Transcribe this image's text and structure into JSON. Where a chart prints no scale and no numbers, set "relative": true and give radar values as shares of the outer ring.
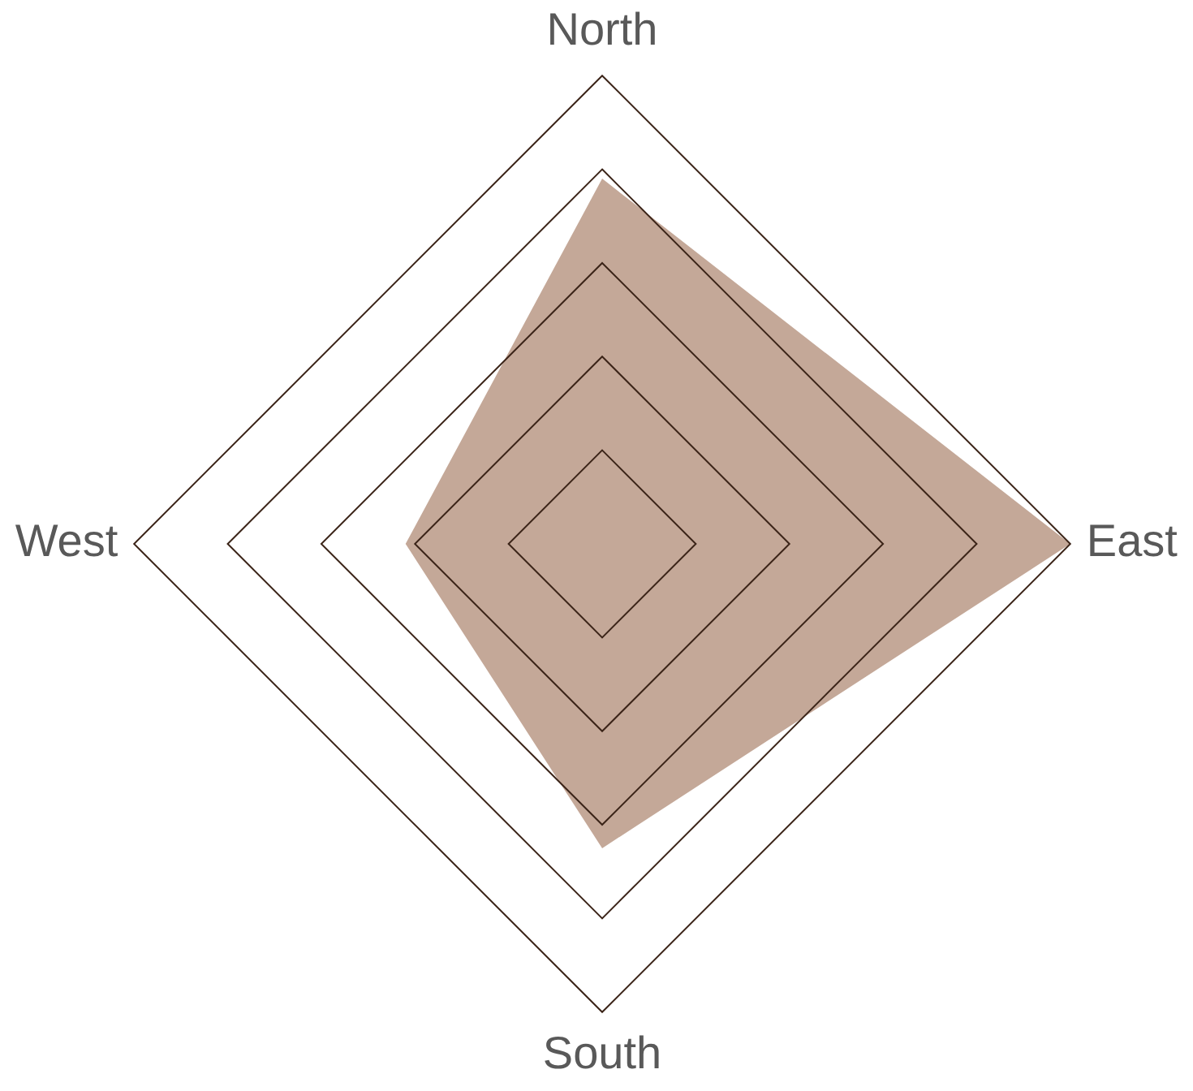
{
  "chart_data": {
    "type": "radar",
    "categories": [
      "North",
      "East",
      "South",
      "West"
    ],
    "relative": true,
    "grid": true,
    "series": [
      {
        "color": "#c4a898",
        "values": [
          0.78,
          1,
          0.65,
          0.42
        ]
      }
    ]
  }
}
